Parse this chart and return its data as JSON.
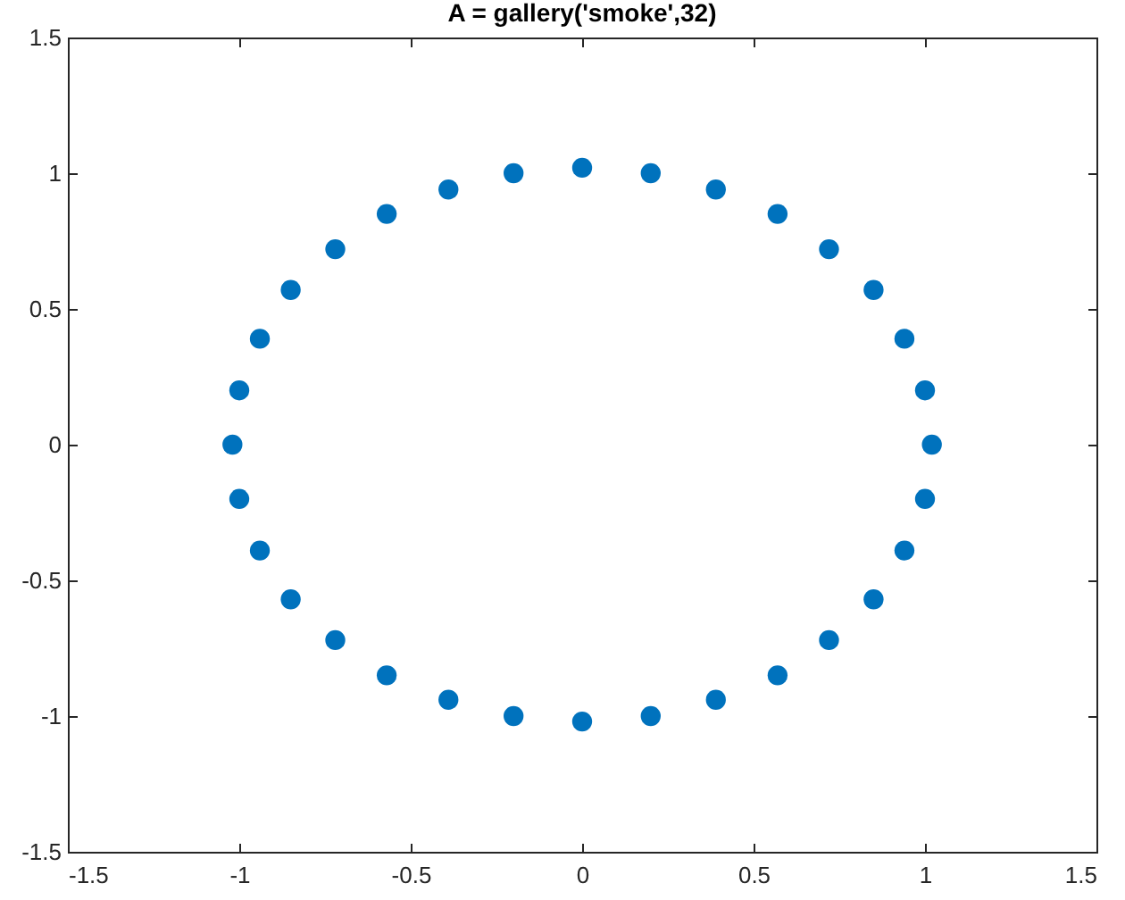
{
  "chart_data": {
    "type": "scatter",
    "title": "A = gallery('smoke',32)",
    "x": [
      1.02,
      1.0,
      0.94,
      0.85,
      0.72,
      0.57,
      0.39,
      0.2,
      0,
      -0.2,
      -0.39,
      -0.57,
      -0.72,
      -0.85,
      -0.94,
      -1.0,
      -1.02,
      -1.0,
      -0.94,
      -0.85,
      -0.72,
      -0.57,
      -0.39,
      -0.2,
      0,
      0.2,
      0.39,
      0.57,
      0.72,
      0.85,
      0.94,
      1.0
    ],
    "values": [
      0,
      0.2,
      0.39,
      0.57,
      0.72,
      0.85,
      0.94,
      1.0,
      1.02,
      1.0,
      0.94,
      0.85,
      0.72,
      0.57,
      0.39,
      0.2,
      0,
      -0.2,
      -0.39,
      -0.57,
      -0.72,
      -0.85,
      -0.94,
      -1.0,
      -1.02,
      -1.0,
      -0.94,
      -0.85,
      -0.72,
      -0.57,
      -0.39,
      -0.2
    ],
    "color": "#0072bd",
    "marker": "circle",
    "grid": false,
    "xlim": [
      -1.5,
      1.5
    ],
    "ylim": [
      -1.5,
      1.5
    ],
    "xticks": [
      -1.5,
      -1,
      -0.5,
      0,
      0.5,
      1,
      1.5
    ],
    "yticks": [
      -1.5,
      -1,
      -0.5,
      0,
      0.5,
      1,
      1.5
    ]
  }
}
